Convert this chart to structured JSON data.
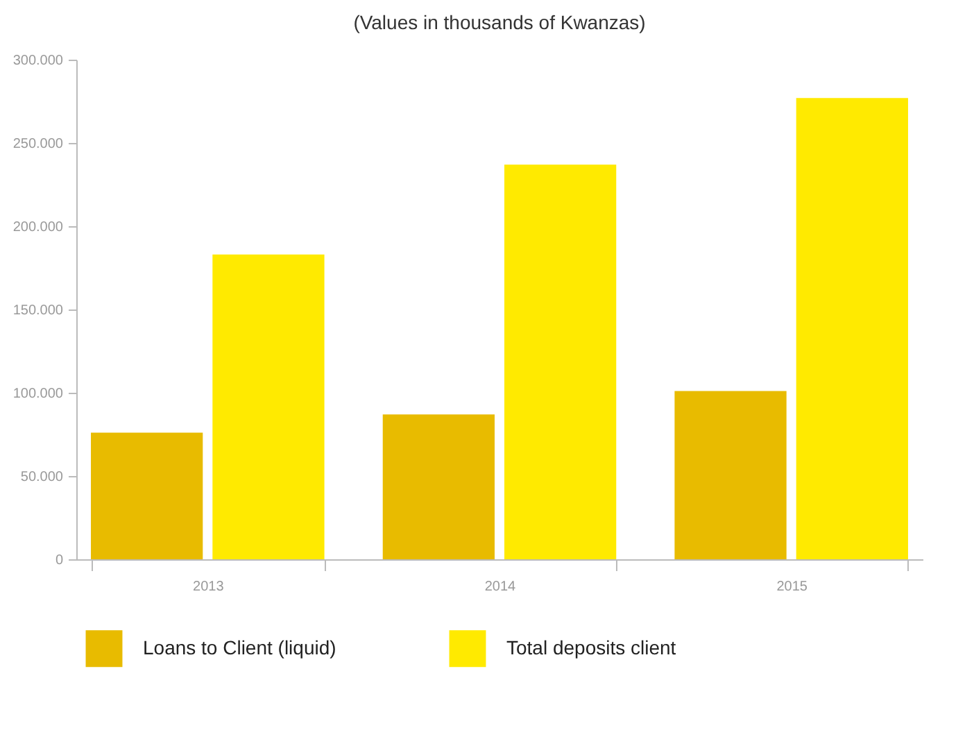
{
  "chart_data": {
    "type": "bar",
    "title": "(Values in thousands of Kwanzas)",
    "categories": [
      "2013",
      "2014",
      "2015"
    ],
    "series": [
      {
        "name": "Loans to Client (liquid)",
        "color": "#e8bb00",
        "values": [
          76000,
          87000,
          101000
        ]
      },
      {
        "name": "Total deposits client",
        "color": "#ffea00",
        "values": [
          183000,
          237000,
          277000
        ]
      }
    ],
    "ylim": [
      0,
      300000
    ],
    "yticks": [
      0,
      {
        "value": 50000,
        "label": "50.000"
      },
      {
        "value": 100000,
        "label": "100.000"
      },
      {
        "value": 150000,
        "label": "150.000"
      },
      {
        "value": 200000,
        "label": "200.000"
      },
      {
        "value": 250000,
        "label": "250.000"
      },
      {
        "value": 300000,
        "label": "300.000"
      }
    ],
    "legend": "bottom"
  }
}
